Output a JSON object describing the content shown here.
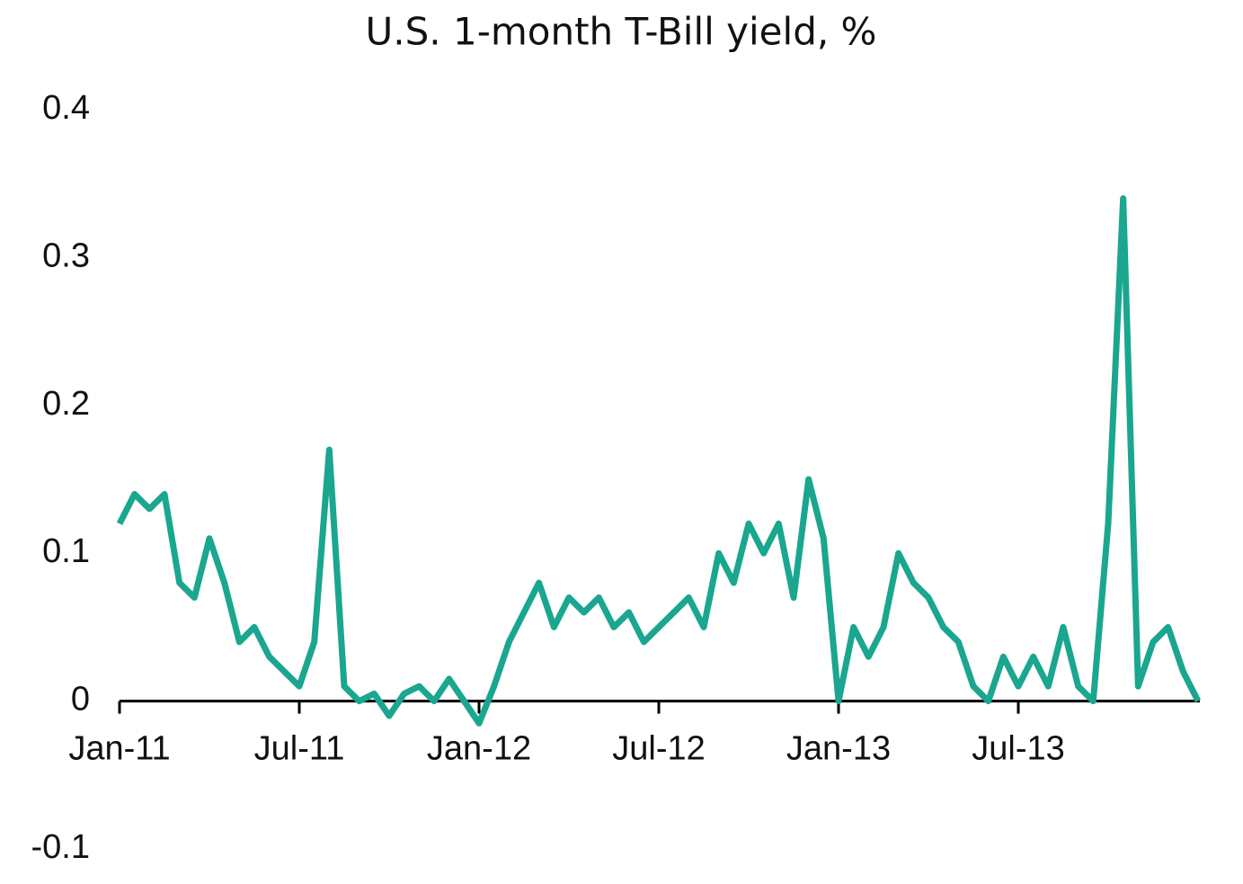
{
  "chart_data": {
    "type": "line",
    "title": "U.S. 1-month T-Bill yield, %",
    "categories": [
      "Jan-11",
      null,
      null,
      null,
      null,
      null,
      null,
      null,
      null,
      null,
      null,
      null,
      "Jul-11",
      null,
      null,
      null,
      null,
      null,
      null,
      null,
      null,
      null,
      null,
      null,
      "Jan-12",
      null,
      null,
      null,
      null,
      null,
      null,
      null,
      null,
      null,
      null,
      null,
      "Jul-12",
      null,
      null,
      null,
      null,
      null,
      null,
      null,
      null,
      null,
      null,
      null,
      "Jan-13",
      null,
      null,
      null,
      null,
      null,
      null,
      null,
      null,
      null,
      null,
      null,
      "Jul-13",
      null,
      null,
      null,
      null,
      null,
      null,
      null,
      null,
      null,
      null,
      null,
      null
    ],
    "series": [
      {
        "name": "U.S. 1-month T-Bill yield",
        "color": "#1aa68f",
        "values": [
          0.12,
          0.14,
          0.13,
          0.14,
          0.08,
          0.07,
          0.11,
          0.08,
          0.04,
          0.05,
          0.03,
          0.02,
          0.01,
          0.04,
          0.17,
          0.01,
          0.0,
          0.005,
          -0.01,
          0.005,
          0.01,
          0.0,
          0.015,
          0.0,
          -0.015,
          0.01,
          0.04,
          0.06,
          0.08,
          0.05,
          0.07,
          0.06,
          0.07,
          0.05,
          0.06,
          0.04,
          0.05,
          0.06,
          0.07,
          0.05,
          0.1,
          0.08,
          0.12,
          0.1,
          0.12,
          0.07,
          0.15,
          0.11,
          0.0,
          0.05,
          0.03,
          0.05,
          0.1,
          0.08,
          0.07,
          0.05,
          0.04,
          0.01,
          0.0,
          0.03,
          0.01,
          0.03,
          0.01,
          0.05,
          0.01,
          0.0,
          0.12,
          0.34,
          0.01,
          0.04,
          0.05,
          0.02,
          0.0
        ]
      }
    ],
    "ylim": [
      -0.1,
      0.4
    ],
    "yticks": [
      -0.1,
      0,
      0.1,
      0.2,
      0.3,
      0.4
    ],
    "grid": false
  }
}
